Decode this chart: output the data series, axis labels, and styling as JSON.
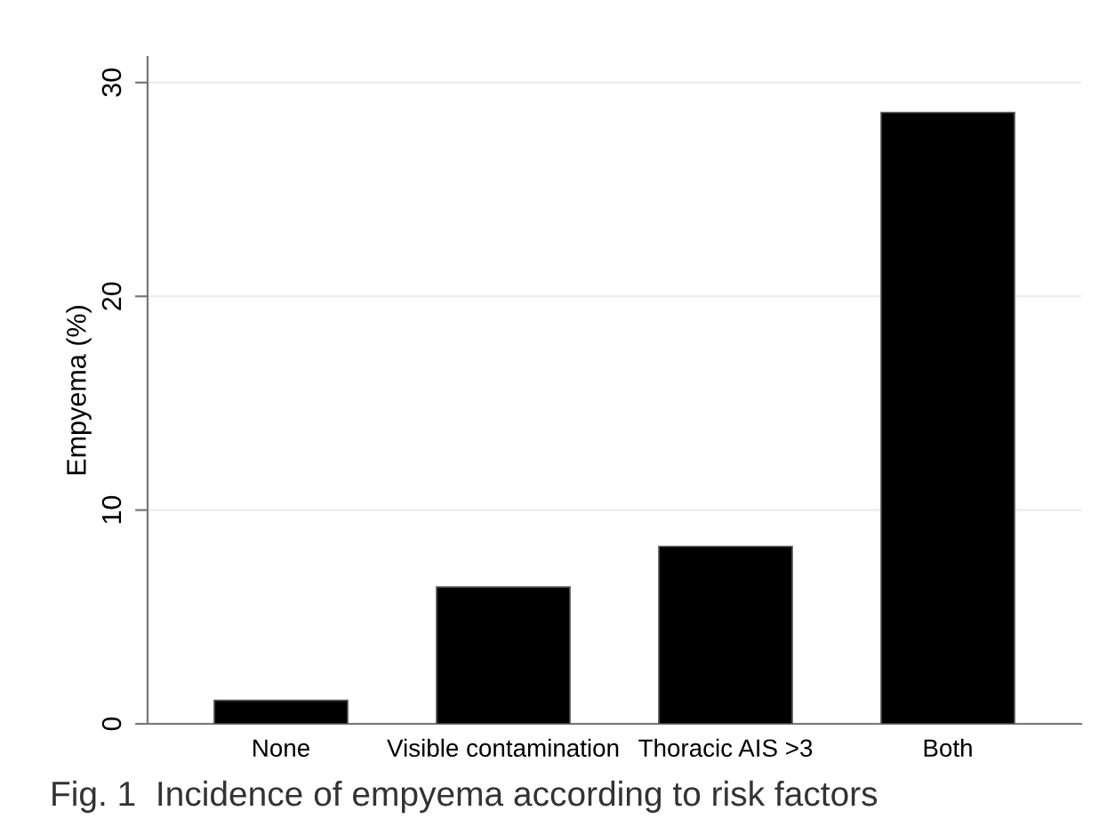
{
  "chart_data": {
    "type": "bar",
    "ylabel": "Empyema (%)",
    "categories": [
      "None",
      "Visible contamination",
      "Thoracic AIS >3",
      "Both"
    ],
    "values": [
      1.1,
      6.4,
      8.3,
      28.6
    ],
    "color": "#000000",
    "ylim": [
      0,
      31.2
    ],
    "yticks": [
      0,
      10,
      20,
      30
    ],
    "grid": "y",
    "annotations": [
      "Fig. 1  Incidence of empyema according to risk factors"
    ]
  }
}
